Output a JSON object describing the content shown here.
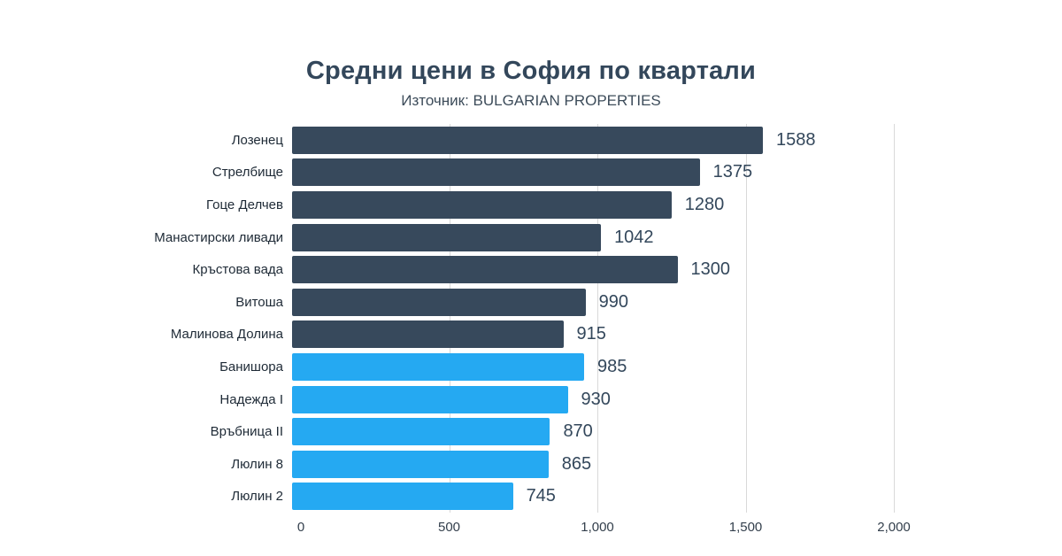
{
  "chart_data": {
    "type": "bar",
    "orientation": "horizontal",
    "title": "Средни цени в София по квартали",
    "subtitle": "Източник: BULGARIAN PROPERTIES",
    "xlabel": "",
    "ylabel": "",
    "xlim": [
      0,
      2000
    ],
    "grid": true,
    "legend": "none",
    "colors": {
      "dark": "#37495c",
      "blue": "#25a9f2",
      "gridline": "#d9d9d9",
      "title": "#33475b",
      "value_label": "#33475b"
    },
    "x_ticks": [
      {
        "label": "0",
        "value": 0
      },
      {
        "label": "500",
        "value": 500
      },
      {
        "label": "1,000",
        "value": 1000
      },
      {
        "label": "1,500",
        "value": 1500
      },
      {
        "label": "2,000",
        "value": 2000
      }
    ],
    "categories": [
      "Лозенец",
      "Стрелбище",
      "Гоце Делчев",
      "Манастирски ливади",
      "Кръстова вада",
      "Витоша",
      "Малинова Долина",
      "Банишора",
      "Надежда I",
      "Връбница II",
      "Люлин 8",
      "Люлин 2"
    ],
    "values": [
      1588,
      1375,
      1280,
      1042,
      1300,
      990,
      915,
      985,
      930,
      870,
      865,
      745
    ],
    "bars": [
      {
        "label": "Лозенец",
        "value": 1588,
        "value_label": "1588",
        "group": "dark"
      },
      {
        "label": "Стрелбище",
        "value": 1375,
        "value_label": "1375",
        "group": "dark"
      },
      {
        "label": "Гоце Делчев",
        "value": 1280,
        "value_label": "1280",
        "group": "dark"
      },
      {
        "label": "Манастирски ливади",
        "value": 1042,
        "value_label": "1042",
        "group": "dark"
      },
      {
        "label": "Кръстова вада",
        "value": 1300,
        "value_label": "1300",
        "group": "dark"
      },
      {
        "label": "Витоша",
        "value": 990,
        "value_label": "990",
        "group": "dark"
      },
      {
        "label": "Малинова Долина",
        "value": 915,
        "value_label": "915",
        "group": "dark"
      },
      {
        "label": "Банишора",
        "value": 985,
        "value_label": "985",
        "group": "blue"
      },
      {
        "label": "Надежда I",
        "value": 930,
        "value_label": "930",
        "group": "blue"
      },
      {
        "label": "Връбница II",
        "value": 870,
        "value_label": "870",
        "group": "blue"
      },
      {
        "label": "Люлин 8",
        "value": 865,
        "value_label": "865",
        "group": "blue"
      },
      {
        "label": "Люлин 2",
        "value": 745,
        "value_label": "745",
        "group": "blue"
      }
    ]
  }
}
